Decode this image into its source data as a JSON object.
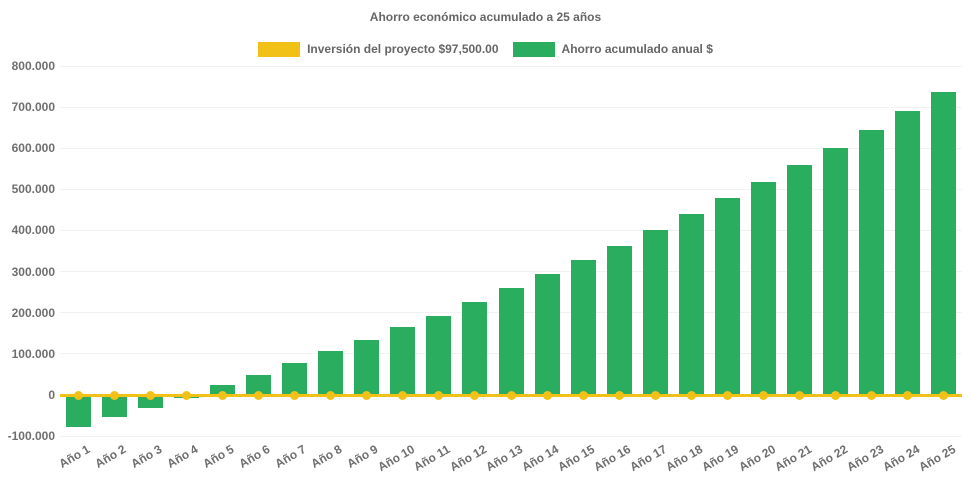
{
  "chart_data": {
    "type": "bar",
    "title": "Ahorro económico acumulado a 25 años",
    "categories": [
      "Año 1",
      "Año 2",
      "Año 3",
      "Año 4",
      "Año 5",
      "Año 6",
      "Año 7",
      "Año 8",
      "Año 9",
      "Año 10",
      "Año 11",
      "Año 12",
      "Año 13",
      "Año 14",
      "Año 15",
      "Año 16",
      "Año 17",
      "Año 18",
      "Año 19",
      "Año 20",
      "Año 21",
      "Año 22",
      "Año 23",
      "Año 24",
      "Año 25"
    ],
    "series": [
      {
        "name": "Inversión del proyecto $97,500.00",
        "type": "line",
        "color": "#F1C117",
        "point_style": "circle",
        "values": [
          0,
          0,
          0,
          0,
          0,
          0,
          0,
          0,
          0,
          0,
          0,
          0,
          0,
          0,
          0,
          0,
          0,
          0,
          0,
          0,
          0,
          0,
          0,
          0,
          0
        ]
      },
      {
        "name": "Ahorro acumulado anual $",
        "type": "bar",
        "color": "#2BAD60",
        "values": [
          -78000,
          -55000,
          -33000,
          -7000,
          25000,
          49000,
          77000,
          106000,
          133000,
          164000,
          191000,
          225000,
          259000,
          294000,
          327000,
          363000,
          402000,
          439000,
          478000,
          517000,
          558000,
          601000,
          645000,
          691000,
          736000
        ]
      }
    ],
    "xlabel": "",
    "ylabel": "",
    "ylim": [
      -100000,
      800000
    ],
    "ytick_step": 100000,
    "ytick_labels": [
      "800.000",
      "700.000",
      "600.000",
      "500.000",
      "400.000",
      "300.000",
      "200.000",
      "100.000",
      "0",
      "-100.000"
    ],
    "grid": "horizontal-faint",
    "legend_position": "top",
    "x_tick_rotation_deg": -30
  },
  "colors": {
    "background": "#ffffff",
    "text": "#666666",
    "tick_text": "#6e6e6e",
    "grid": "rgba(0,0,0,0.05)",
    "investment_yellow": "#F1C117",
    "savings_green": "#2BAD60"
  }
}
